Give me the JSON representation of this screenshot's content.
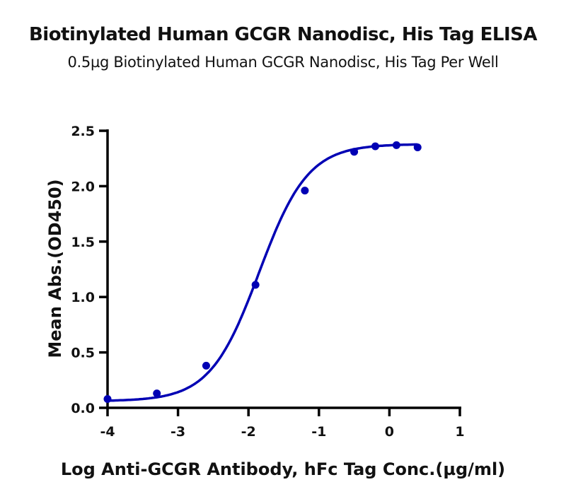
{
  "header": {
    "title": "Biotinylated Human GCGR Nanodisc, His Tag ELISA",
    "subtitle": "0.5µg Biotinylated Human GCGR Nanodisc, His Tag Per Well"
  },
  "colors": {
    "series": "#0000b4",
    "axis": "#000000"
  },
  "chart_data": {
    "type": "line",
    "title": "Biotinylated Human GCGR Nanodisc, His Tag ELISA",
    "subtitle": "0.5µg Biotinylated Human GCGR Nanodisc, His Tag Per Well",
    "xlabel": "Log Anti-GCGR Antibody, hFc Tag Conc.(µg/ml)",
    "ylabel": "Mean Abs.(OD450)",
    "xlim": [
      -4,
      1
    ],
    "ylim": [
      0,
      2.5
    ],
    "x_ticks": [
      "-4",
      "-3",
      "-2",
      "-1",
      "0",
      "1"
    ],
    "y_ticks": [
      "0.0",
      "0.5",
      "1.0",
      "1.5",
      "2.0",
      "2.5"
    ],
    "grid": false,
    "legend": null,
    "series": [
      {
        "name": "Biotinylated Human GCGR Nanodisc, His Tag",
        "x": [
          -4.0,
          -3.3,
          -2.6,
          -1.9,
          -1.2,
          -0.5,
          -0.2,
          0.1,
          0.4
        ],
        "values": [
          0.08,
          0.13,
          0.38,
          1.11,
          1.96,
          2.31,
          2.36,
          2.37,
          2.35
        ],
        "fit": "4-parameter logistic curve"
      }
    ]
  }
}
